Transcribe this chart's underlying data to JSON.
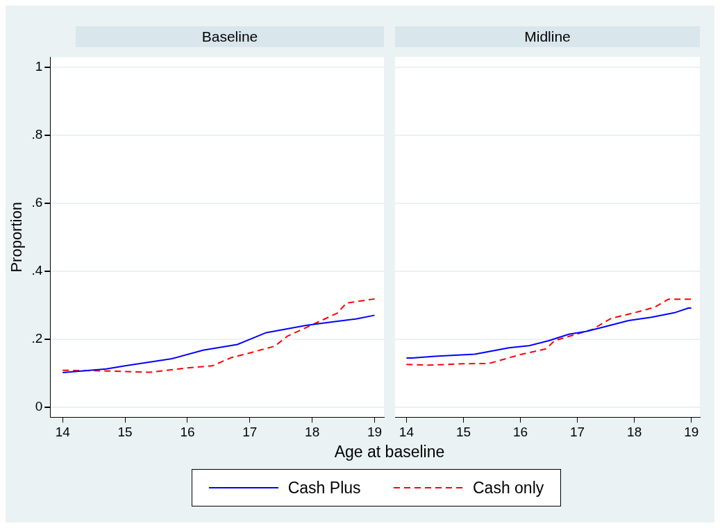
{
  "chart_data": [
    {
      "type": "line",
      "title": "Baseline",
      "xlabel": "Age at baseline",
      "ylabel": "Proportion",
      "xlim": [
        13.8,
        19.15
      ],
      "xticks": [
        14,
        15,
        16,
        17,
        18,
        19
      ],
      "ylim": [
        -0.03,
        1.03
      ],
      "yticks": [
        0,
        {
          "value": 0.2,
          "label": ".2"
        },
        {
          "value": 0.4,
          "label": ".4"
        },
        {
          "value": 0.6,
          "label": ".6"
        },
        {
          "value": 0.8,
          "label": ".8"
        },
        1
      ],
      "grid": "y",
      "legend": "bottom",
      "marker": "none",
      "series": [
        {
          "name": "Cash Plus",
          "color": "#0000ff",
          "line_style": "solid",
          "x": [
            14,
            14.7,
            15,
            15.75,
            16.25,
            16.8,
            17,
            17.25,
            17.9,
            18.3,
            18.7,
            19
          ],
          "values": [
            0.101,
            0.112,
            0.121,
            0.142,
            0.167,
            0.184,
            0.199,
            0.218,
            0.24,
            0.25,
            0.259,
            0.27
          ]
        },
        {
          "name": "Cash only",
          "color": "#ff0000",
          "line_style": "dashed",
          "x": [
            14,
            14.7,
            15.4,
            16,
            16.4,
            16.7,
            17,
            17.4,
            17.6,
            18,
            18.4,
            18.55,
            19
          ],
          "values": [
            0.108,
            0.106,
            0.102,
            0.115,
            0.121,
            0.145,
            0.159,
            0.179,
            0.208,
            0.242,
            0.276,
            0.306,
            0.318
          ]
        }
      ]
    },
    {
      "type": "line",
      "title": "Midline",
      "xlim": [
        13.8,
        19.15
      ],
      "xticks": [
        14,
        15,
        16,
        17,
        18,
        19
      ],
      "ylim": [
        -0.03,
        1.03
      ],
      "yticks": [
        0,
        0.2,
        0.4,
        0.6,
        0.8,
        1
      ],
      "grid": "y",
      "marker": "none",
      "tick_labels": "x",
      "series": [
        {
          "color": "#0000ff",
          "line_style": "solid",
          "x": [
            14,
            14.1,
            14.5,
            15.2,
            15.8,
            16.15,
            16.5,
            16.85,
            17.15,
            17.5,
            17.9,
            18.3,
            18.7,
            18.95,
            19
          ],
          "values": [
            0.144,
            0.144,
            0.149,
            0.155,
            0.174,
            0.18,
            0.195,
            0.214,
            0.222,
            0.237,
            0.254,
            0.264,
            0.277,
            0.291,
            0.291
          ]
        },
        {
          "color": "#ff0000",
          "line_style": "dashed",
          "x": [
            14,
            14.4,
            15,
            15.45,
            16,
            16.45,
            16.6,
            17,
            17.25,
            17.6,
            18,
            18.35,
            18.6,
            19
          ],
          "values": [
            0.125,
            0.123,
            0.127,
            0.128,
            0.154,
            0.171,
            0.195,
            0.215,
            0.227,
            0.261,
            0.277,
            0.293,
            0.317,
            0.317
          ]
        }
      ]
    }
  ]
}
